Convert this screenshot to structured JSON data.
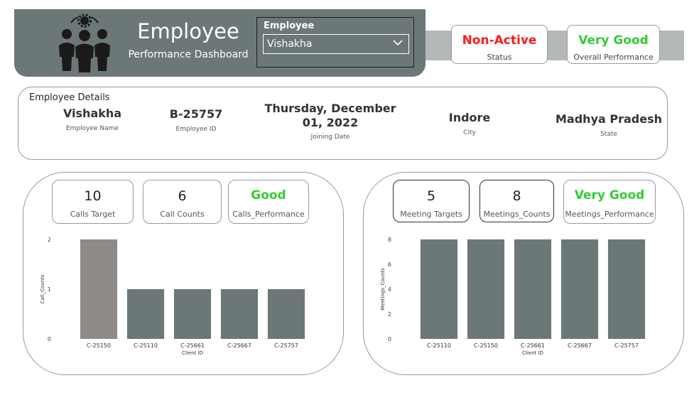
{
  "header": {
    "title": "Employee",
    "subtitle": "Performance Dashboard",
    "slicer": {
      "label": "Employee",
      "value": "Vishakha"
    }
  },
  "status_cards": [
    {
      "value": "Non-Active",
      "label": "Status",
      "color": "#ff1a1a"
    },
    {
      "value": "Very Good",
      "label": "Overall Performance",
      "color": "#33cc33"
    }
  ],
  "details": {
    "heading": "Employee Details",
    "fields": [
      {
        "value": "Vishakha",
        "label": "Employee Name"
      },
      {
        "value": "B-25757",
        "label": "Employee ID"
      },
      {
        "value": "Thursday, December 01, 2022",
        "label": "Joining Date"
      },
      {
        "value": "Indore",
        "label": "City"
      },
      {
        "value": "Madhya Pradesh",
        "label": "State"
      }
    ]
  },
  "calls": {
    "cards": [
      {
        "value": "10",
        "label": "Calls Target"
      },
      {
        "value": "6",
        "label": "Call Counts"
      },
      {
        "value": "Good",
        "label": "Calls_Performance",
        "color": "#33cc33"
      }
    ]
  },
  "meetings": {
    "cards": [
      {
        "value": "5",
        "label": "Meeting Targets"
      },
      {
        "value": "8",
        "label": "Meetings_Counts"
      },
      {
        "value": "Very Good",
        "label": "Meetings_Performance",
        "color": "#33cc33"
      }
    ]
  },
  "chart_data": [
    {
      "type": "bar",
      "categories": [
        "C-25150",
        "C-25110",
        "C-25661",
        "C-25667",
        "C-25757"
      ],
      "values": [
        2,
        1,
        1,
        1,
        1
      ],
      "xlabel": "Client ID",
      "ylabel": "Call_Counts",
      "ylim": [
        0,
        2
      ],
      "yticks": [
        "0",
        "1",
        "2"
      ],
      "highlighted": "C-25150",
      "colors": {
        "bar": "#6c7778",
        "highlight": "#8f8a85"
      },
      "grid": false
    },
    {
      "type": "bar",
      "categories": [
        "C-25110",
        "C-25150",
        "C-25661",
        "C-25667",
        "C-25757"
      ],
      "values": [
        8,
        8,
        8,
        8,
        8
      ],
      "xlabel": "Client ID",
      "ylabel": "Meetings_Counts",
      "ylim": [
        0,
        8
      ],
      "yticks": [
        "0",
        "2",
        "4",
        "6",
        "8"
      ],
      "colors": {
        "bar": "#6c7778"
      },
      "grid": false
    }
  ]
}
